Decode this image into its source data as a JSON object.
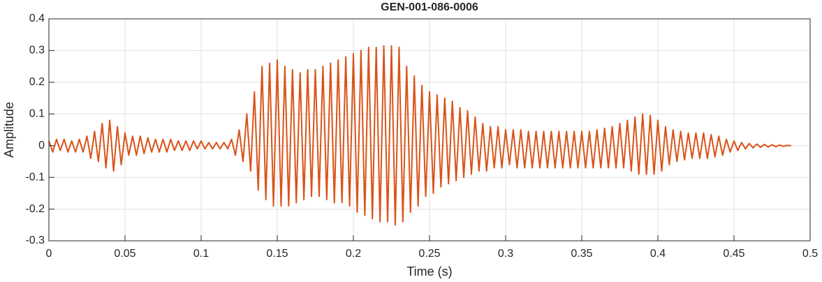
{
  "chart_data": {
    "type": "line",
    "title": "GEN-001-086-0006",
    "xlabel": "Time (s)",
    "ylabel": "Amplitude",
    "xlim": [
      0,
      0.5
    ],
    "ylim": [
      -0.3,
      0.4
    ],
    "xticks": [
      0,
      0.05,
      0.1,
      0.15,
      0.2,
      0.25,
      0.3,
      0.35,
      0.4,
      0.45,
      0.5
    ],
    "yticks": [
      -0.3,
      -0.2,
      -0.1,
      0,
      0.1,
      0.2,
      0.3,
      0.4
    ],
    "grid": true,
    "x": [
      0,
      0.0025,
      0.005,
      0.0075,
      0.01,
      0.0125,
      0.015,
      0.0175,
      0.02,
      0.0225,
      0.025,
      0.0275,
      0.03,
      0.0325,
      0.035,
      0.0375,
      0.04,
      0.0425,
      0.045,
      0.0475,
      0.05,
      0.0525,
      0.055,
      0.0575,
      0.06,
      0.0625,
      0.065,
      0.0675,
      0.07,
      0.0725,
      0.075,
      0.0775,
      0.08,
      0.0825,
      0.085,
      0.0875,
      0.09,
      0.0925,
      0.095,
      0.0975,
      0.1,
      0.1025,
      0.105,
      0.1075,
      0.11,
      0.1125,
      0.115,
      0.1175,
      0.12,
      0.1225,
      0.125,
      0.1275,
      0.13,
      0.1325,
      0.135,
      0.1375,
      0.14,
      0.1425,
      0.145,
      0.1475,
      0.15,
      0.1525,
      0.155,
      0.1575,
      0.16,
      0.1625,
      0.165,
      0.1675,
      0.17,
      0.1725,
      0.175,
      0.1775,
      0.18,
      0.1825,
      0.185,
      0.1875,
      0.19,
      0.1925,
      0.195,
      0.1975,
      0.2,
      0.2025,
      0.205,
      0.2075,
      0.21,
      0.2125,
      0.215,
      0.2175,
      0.22,
      0.2225,
      0.225,
      0.2275,
      0.23,
      0.2325,
      0.235,
      0.2375,
      0.24,
      0.2425,
      0.245,
      0.2475,
      0.25,
      0.2525,
      0.255,
      0.2575,
      0.26,
      0.2625,
      0.265,
      0.2675,
      0.27,
      0.2725,
      0.275,
      0.2775,
      0.28,
      0.2825,
      0.285,
      0.2875,
      0.29,
      0.2925,
      0.295,
      0.2975,
      0.3,
      0.3025,
      0.305,
      0.3075,
      0.31,
      0.3125,
      0.315,
      0.3175,
      0.32,
      0.3225,
      0.325,
      0.3275,
      0.33,
      0.3325,
      0.335,
      0.3375,
      0.34,
      0.3425,
      0.345,
      0.3475,
      0.35,
      0.3525,
      0.355,
      0.3575,
      0.36,
      0.3625,
      0.365,
      0.3675,
      0.37,
      0.3725,
      0.375,
      0.3775,
      0.38,
      0.3825,
      0.385,
      0.3875,
      0.39,
      0.3925,
      0.395,
      0.3975,
      0.4,
      0.4025,
      0.405,
      0.4075,
      0.41,
      0.4125,
      0.415,
      0.4175,
      0.42,
      0.4225,
      0.425,
      0.4275,
      0.43,
      0.4325,
      0.435,
      0.4375,
      0.44,
      0.4425,
      0.445,
      0.4475,
      0.45,
      0.4525,
      0.455,
      0.4575,
      0.46,
      0.4625,
      0.465,
      0.4675,
      0.47,
      0.4725,
      0.475,
      0.4775,
      0.48,
      0.4825,
      0.485,
      0.4875
    ],
    "series": [
      {
        "color": "#d95319",
        "values": [
          0.015,
          -0.02,
          0.02,
          -0.015,
          0.02,
          -0.02,
          0.015,
          -0.02,
          0.02,
          -0.02,
          0.03,
          -0.04,
          0.045,
          -0.05,
          0.07,
          -0.07,
          0.08,
          -0.08,
          0.06,
          -0.06,
          0.04,
          -0.03,
          0.03,
          -0.03,
          0.03,
          -0.025,
          0.025,
          -0.02,
          0.02,
          -0.02,
          0.02,
          -0.02,
          0.02,
          -0.015,
          0.015,
          -0.015,
          0.015,
          -0.015,
          0.015,
          -0.01,
          0.015,
          -0.01,
          0.01,
          -0.01,
          0.01,
          -0.01,
          0.01,
          -0.01,
          0.02,
          -0.03,
          0.05,
          -0.05,
          0.1,
          -0.08,
          0.17,
          -0.14,
          0.25,
          -0.17,
          0.26,
          -0.19,
          0.27,
          -0.19,
          0.25,
          -0.19,
          0.24,
          -0.18,
          0.23,
          -0.17,
          0.24,
          -0.16,
          0.24,
          -0.16,
          0.25,
          -0.17,
          0.26,
          -0.18,
          0.27,
          -0.18,
          0.28,
          -0.19,
          0.29,
          -0.21,
          0.3,
          -0.22,
          0.31,
          -0.23,
          0.31,
          -0.24,
          0.315,
          -0.24,
          0.315,
          -0.25,
          0.31,
          -0.24,
          0.25,
          -0.21,
          0.22,
          -0.19,
          0.19,
          -0.16,
          0.17,
          -0.15,
          0.16,
          -0.13,
          0.15,
          -0.12,
          0.14,
          -0.11,
          0.12,
          -0.1,
          0.11,
          -0.09,
          0.09,
          -0.08,
          0.07,
          -0.08,
          0.06,
          -0.07,
          0.06,
          -0.07,
          0.05,
          -0.06,
          0.05,
          -0.07,
          0.05,
          -0.07,
          0.045,
          -0.07,
          0.045,
          -0.07,
          0.045,
          -0.07,
          0.045,
          -0.07,
          0.045,
          -0.07,
          0.045,
          -0.07,
          0.045,
          -0.07,
          0.045,
          -0.07,
          0.045,
          -0.07,
          0.05,
          -0.07,
          0.055,
          -0.07,
          0.06,
          -0.07,
          0.07,
          -0.07,
          0.08,
          -0.08,
          0.09,
          -0.09,
          0.1,
          -0.09,
          0.095,
          -0.09,
          0.08,
          -0.08,
          0.06,
          -0.06,
          0.05,
          -0.05,
          0.045,
          -0.045,
          0.04,
          -0.04,
          0.04,
          -0.04,
          0.04,
          -0.04,
          0.035,
          -0.035,
          0.03,
          -0.03,
          0.02,
          -0.02,
          0.015,
          -0.015,
          0.01,
          -0.01,
          0.007,
          -0.007,
          0.005,
          -0.005,
          0.004,
          -0.004,
          0.003,
          -0.003,
          0.002,
          -0.002,
          0.001,
          0
        ]
      }
    ]
  }
}
